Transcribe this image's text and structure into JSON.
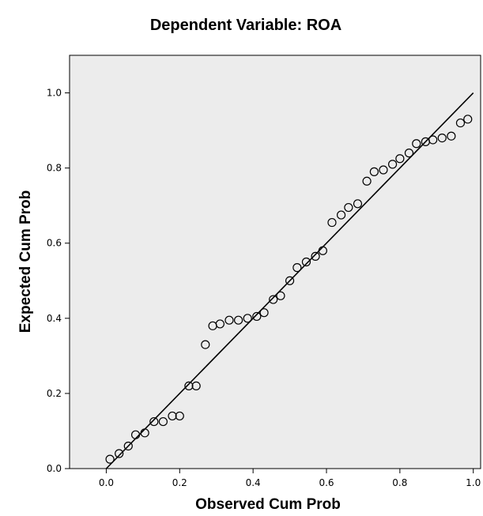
{
  "chart_data": {
    "type": "scatter",
    "title": "Dependent Variable: ROA",
    "xlabel": "Observed Cum Prob",
    "ylabel": "Expected Cum Prob",
    "xlim": [
      -0.1,
      1.02
    ],
    "ylim": [
      0.0,
      1.1
    ],
    "x_ticks": [
      "0.0",
      "0.2",
      "0.4",
      "0.6",
      "0.8",
      "1.0"
    ],
    "y_ticks": [
      "0.0",
      "0.2",
      "0.4",
      "0.6",
      "0.8",
      "1.0"
    ],
    "reference_line": {
      "x": [
        0.0,
        1.0
      ],
      "y": [
        0.0,
        1.0
      ]
    },
    "grid": false,
    "plot_background": "#ececec",
    "marker": "open-circle",
    "series": [
      {
        "points": [
          [
            0.01,
            0.025
          ],
          [
            0.035,
            0.04
          ],
          [
            0.06,
            0.06
          ],
          [
            0.08,
            0.09
          ],
          [
            0.105,
            0.095
          ],
          [
            0.13,
            0.125
          ],
          [
            0.155,
            0.125
          ],
          [
            0.18,
            0.14
          ],
          [
            0.2,
            0.14
          ],
          [
            0.225,
            0.22
          ],
          [
            0.245,
            0.22
          ],
          [
            0.27,
            0.33
          ],
          [
            0.29,
            0.38
          ],
          [
            0.31,
            0.385
          ],
          [
            0.335,
            0.395
          ],
          [
            0.36,
            0.395
          ],
          [
            0.385,
            0.4
          ],
          [
            0.41,
            0.405
          ],
          [
            0.43,
            0.415
          ],
          [
            0.455,
            0.45
          ],
          [
            0.475,
            0.46
          ],
          [
            0.5,
            0.5
          ],
          [
            0.52,
            0.535
          ],
          [
            0.545,
            0.55
          ],
          [
            0.57,
            0.565
          ],
          [
            0.59,
            0.58
          ],
          [
            0.615,
            0.655
          ],
          [
            0.64,
            0.675
          ],
          [
            0.66,
            0.695
          ],
          [
            0.685,
            0.705
          ],
          [
            0.71,
            0.765
          ],
          [
            0.73,
            0.79
          ],
          [
            0.755,
            0.795
          ],
          [
            0.78,
            0.81
          ],
          [
            0.8,
            0.825
          ],
          [
            0.825,
            0.84
          ],
          [
            0.845,
            0.865
          ],
          [
            0.87,
            0.87
          ],
          [
            0.89,
            0.875
          ],
          [
            0.915,
            0.88
          ],
          [
            0.94,
            0.885
          ],
          [
            0.965,
            0.92
          ],
          [
            0.985,
            0.93
          ]
        ]
      }
    ]
  }
}
